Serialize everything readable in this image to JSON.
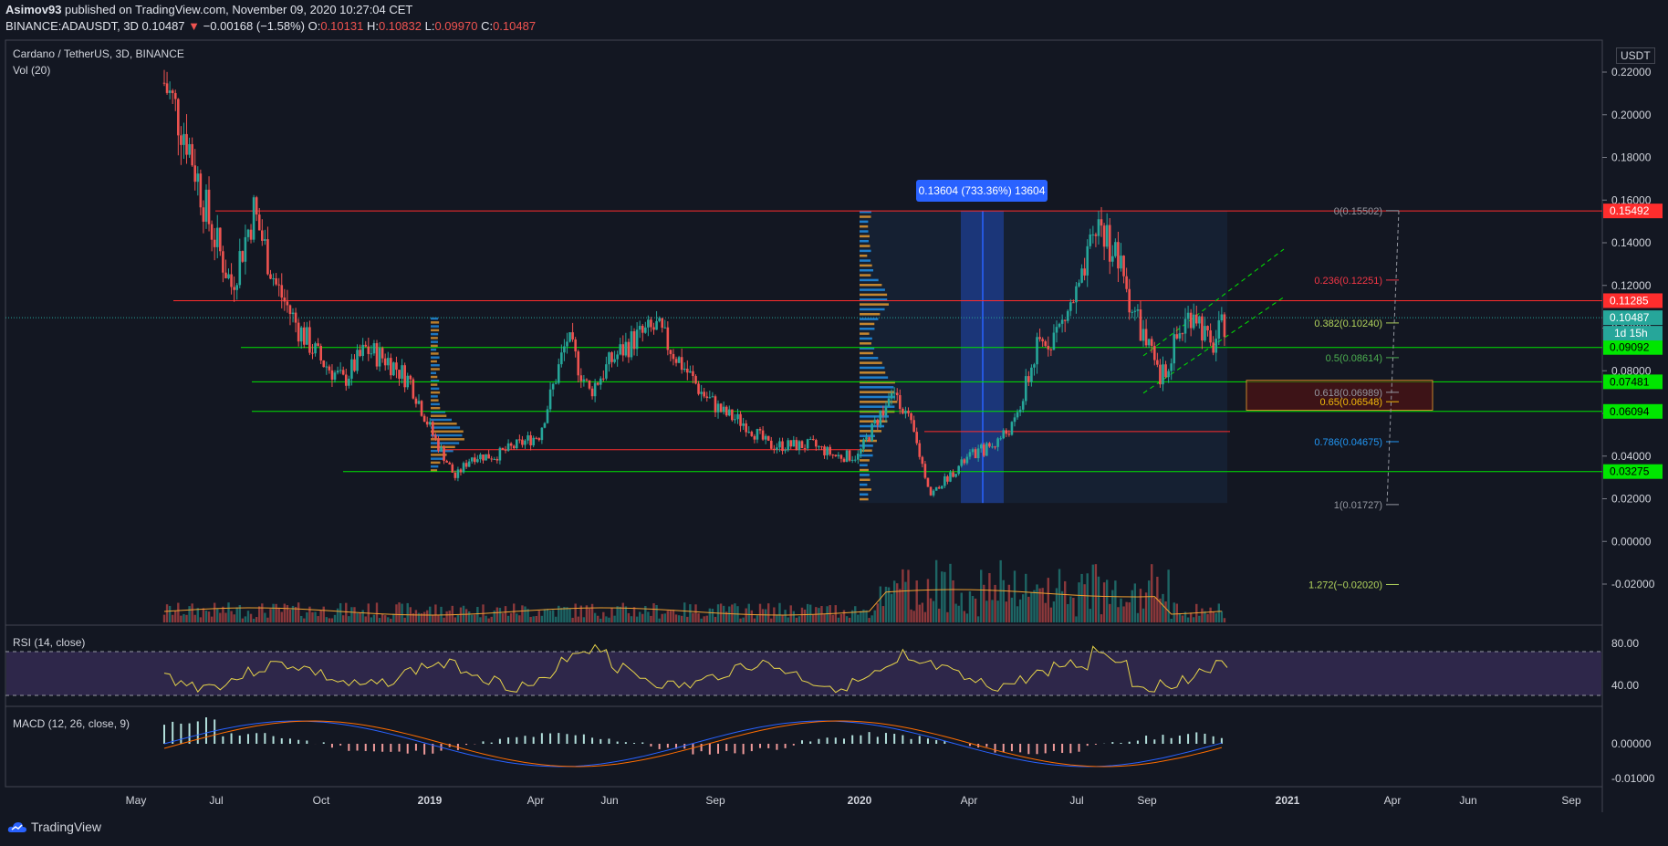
{
  "header": {
    "author": "Asimov93",
    "published": "published on TradingView.com, November 09, 2020 10:27:04 CET",
    "symbol": "BINANCE:ADAUSDT, 3D",
    "last": "0.10487",
    "change_arrow": "▼",
    "change": "−0.00168 (−1.58%)",
    "o_label": "O:",
    "o": "0.10131",
    "h_label": "H:",
    "h": "0.10832",
    "l_label": "L:",
    "l": "0.09970",
    "c_label": "C:",
    "c": "0.10487"
  },
  "legend": {
    "title": "Cardano / TetherUS, 3D, BINANCE",
    "vol": "Vol (20)"
  },
  "rsi_label": "RSI (14, close)",
  "macd_label": "MACD (12, 26, close, 9)",
  "currency": "USDT",
  "footer": {
    "brand": "TradingView"
  },
  "colors": {
    "bull": "#26a69a",
    "bear": "#ef5350",
    "support": "#00e600",
    "resistance": "#ff2d2d",
    "rsi": "#e6d34a",
    "accent": "#2962ff"
  },
  "chart_data": {
    "type": "candlestick",
    "title": "Cardano / TetherUS, 3D, BINANCE",
    "y_ticks": [
      "0.22000",
      "0.20000",
      "0.18000",
      "0.16000",
      "0.14000",
      "0.12000",
      "0.10000",
      "0.08000",
      "0.06000",
      "0.04000",
      "0.02000",
      "0.00000",
      "-0.02000"
    ],
    "y_tick_values": [
      0.22,
      0.2,
      0.18,
      0.16,
      0.14,
      0.12,
      0.1,
      0.08,
      0.06,
      0.04,
      0.02,
      0,
      -0.02
    ],
    "x_ticks": [
      "May",
      "Jul",
      "Oct",
      "2019",
      "Apr",
      "Jun",
      "Sep",
      "2020",
      "Apr",
      "Jul",
      "Sep",
      "2021",
      "Apr",
      "Jun",
      "Sep"
    ],
    "price_labels": [
      {
        "value": 0.15492,
        "text": "0.15492",
        "color": "#ff2d2d",
        "text_color": "#ffffff"
      },
      {
        "value": 0.11285,
        "text": "0.11285",
        "color": "#ff2d2d",
        "text_color": "#ffffff"
      },
      {
        "value": 0.10487,
        "text": "0.10487",
        "color": "#26a69a",
        "text_color": "#ffffff"
      },
      {
        "value": 0.09092,
        "text": "0.09092",
        "color": "#00e600",
        "text_color": "#000000"
      },
      {
        "value": 0.07481,
        "text": "0.07481",
        "color": "#00e600",
        "text_color": "#000000"
      },
      {
        "value": 0.06094,
        "text": "0.06094",
        "color": "#00e600",
        "text_color": "#000000"
      },
      {
        "value": 0.03275,
        "text": "0.03275",
        "color": "#00e600",
        "text_color": "#000000"
      }
    ],
    "countdown": "1d 15h",
    "fib_levels": [
      {
        "text": "0(0.15502)",
        "value": 0.15502,
        "color": "#9598a1"
      },
      {
        "text": "0.236(0.12251)",
        "value": 0.12251,
        "color": "#f23645"
      },
      {
        "text": "0.382(0.10240)",
        "value": 0.1024,
        "color": "#b2d45c"
      },
      {
        "text": "0.5(0.08614)",
        "value": 0.08614,
        "color": "#4caf50"
      },
      {
        "text": "0.618(0.06989)",
        "value": 0.06989,
        "color": "#9598a1"
      },
      {
        "text": "0.65(0.06548)",
        "value": 0.06548,
        "color": "#f0b90b"
      },
      {
        "text": "0.786(0.04675)",
        "value": 0.04675,
        "color": "#2196f3"
      },
      {
        "text": "1(0.01727)",
        "value": 0.01727,
        "color": "#9598a1"
      },
      {
        "text": "1.272(−0.02020)",
        "value": -0.0202,
        "color": "#b2d45c"
      }
    ],
    "measure_label": "0.13604 (733.36%) 13604",
    "rsi_ticks": [
      "80.00",
      "40.00"
    ],
    "macd_ticks": [
      "0.00000",
      "-0.01000"
    ],
    "price_path": [
      [
        0,
        0.215
      ],
      [
        8,
        0.19
      ],
      [
        16,
        0.15
      ],
      [
        24,
        0.12
      ],
      [
        32,
        0.155
      ],
      [
        40,
        0.12
      ],
      [
        48,
        0.1
      ],
      [
        56,
        0.085
      ],
      [
        64,
        0.075
      ],
      [
        72,
        0.09
      ],
      [
        80,
        0.085
      ],
      [
        88,
        0.075
      ],
      [
        96,
        0.05
      ],
      [
        104,
        0.03
      ],
      [
        110,
        0.04
      ],
      [
        118,
        0.04
      ],
      [
        126,
        0.045
      ],
      [
        134,
        0.05
      ],
      [
        144,
        0.095
      ],
      [
        152,
        0.07
      ],
      [
        160,
        0.085
      ],
      [
        168,
        0.095
      ],
      [
        176,
        0.1
      ],
      [
        184,
        0.085
      ],
      [
        192,
        0.07
      ],
      [
        200,
        0.06
      ],
      [
        208,
        0.055
      ],
      [
        216,
        0.045
      ],
      [
        224,
        0.045
      ],
      [
        232,
        0.045
      ],
      [
        240,
        0.04
      ],
      [
        248,
        0.04
      ],
      [
        256,
        0.06
      ],
      [
        262,
        0.07
      ],
      [
        268,
        0.05
      ],
      [
        274,
        0.022
      ],
      [
        280,
        0.03
      ],
      [
        288,
        0.04
      ],
      [
        296,
        0.045
      ],
      [
        304,
        0.055
      ],
      [
        312,
        0.09
      ],
      [
        320,
        0.1
      ],
      [
        328,
        0.12
      ],
      [
        334,
        0.15
      ],
      [
        340,
        0.135
      ],
      [
        346,
        0.11
      ],
      [
        352,
        0.09
      ],
      [
        356,
        0.075
      ],
      [
        362,
        0.095
      ],
      [
        368,
        0.11
      ],
      [
        374,
        0.09
      ],
      [
        380,
        0.105
      ]
    ]
  }
}
